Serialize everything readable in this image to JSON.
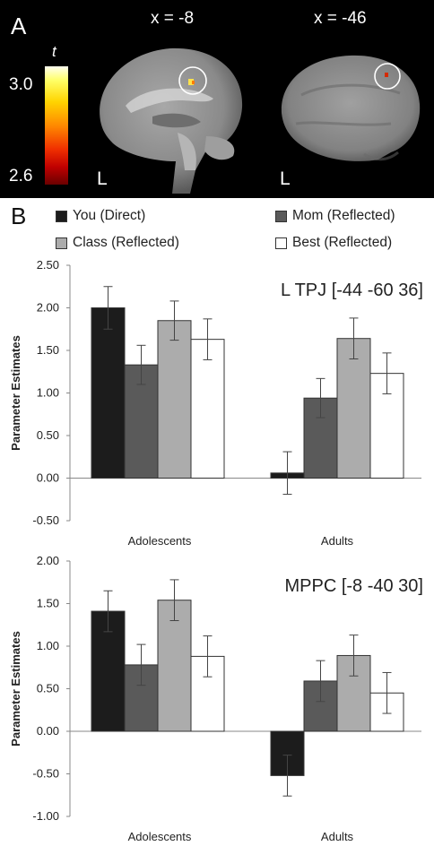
{
  "panel_a": {
    "letter": "A",
    "colorbar": {
      "title": "t",
      "max_label": "3.0",
      "min_label": "2.6"
    },
    "slices": [
      {
        "label": "x = -8",
        "side": "L"
      },
      {
        "label": "x = -46",
        "side": "L"
      }
    ]
  },
  "panel_b": {
    "letter": "B",
    "legend": [
      {
        "label": "You (Direct)",
        "color": "#1c1c1c"
      },
      {
        "label": "Mom (Reflected)",
        "color": "#5a5a5a"
      },
      {
        "label": "Class (Reflected)",
        "color": "#acacac"
      },
      {
        "label": "Best (Reflected)",
        "color": "#ffffff"
      }
    ]
  },
  "chart_data": [
    {
      "type": "bar",
      "title": "L TPJ [-44 -60 36]",
      "ylabel": "Parameter Estimates",
      "xlabel": "",
      "categories": [
        "Adolescents",
        "Adults"
      ],
      "ylim": [
        -0.5,
        2.5
      ],
      "yticks": [
        "2.50",
        "2.00",
        "1.50",
        "1.00",
        "0.50",
        "0.00",
        "-0.50"
      ],
      "grid": false,
      "series": [
        {
          "name": "You (Direct)",
          "values": [
            2.0,
            0.06
          ],
          "errors": [
            0.25,
            0.25
          ]
        },
        {
          "name": "Mom (Reflected)",
          "values": [
            1.33,
            0.94
          ],
          "errors": [
            0.23,
            0.23
          ]
        },
        {
          "name": "Class (Reflected)",
          "values": [
            1.85,
            1.64
          ],
          "errors": [
            0.23,
            0.24
          ]
        },
        {
          "name": "Best (Reflected)",
          "values": [
            1.63,
            1.23
          ],
          "errors": [
            0.24,
            0.24
          ]
        }
      ]
    },
    {
      "type": "bar",
      "title": "MPPC [-8 -40 30]",
      "ylabel": "Parameter Estimates",
      "xlabel": "",
      "categories": [
        "Adolescents",
        "Adults"
      ],
      "ylim": [
        -1.0,
        2.0
      ],
      "yticks": [
        "2.00",
        "1.50",
        "1.00",
        "0.50",
        "0.00",
        "-0.50",
        "-1.00"
      ],
      "grid": false,
      "series": [
        {
          "name": "You (Direct)",
          "values": [
            1.41,
            -0.52
          ],
          "errors": [
            0.24,
            0.24
          ]
        },
        {
          "name": "Mom (Reflected)",
          "values": [
            0.78,
            0.59
          ],
          "errors": [
            0.24,
            0.24
          ]
        },
        {
          "name": "Class (Reflected)",
          "values": [
            1.54,
            0.89
          ],
          "errors": [
            0.24,
            0.24
          ]
        },
        {
          "name": "Best (Reflected)",
          "values": [
            0.88,
            0.45
          ],
          "errors": [
            0.24,
            0.24
          ]
        }
      ]
    }
  ]
}
